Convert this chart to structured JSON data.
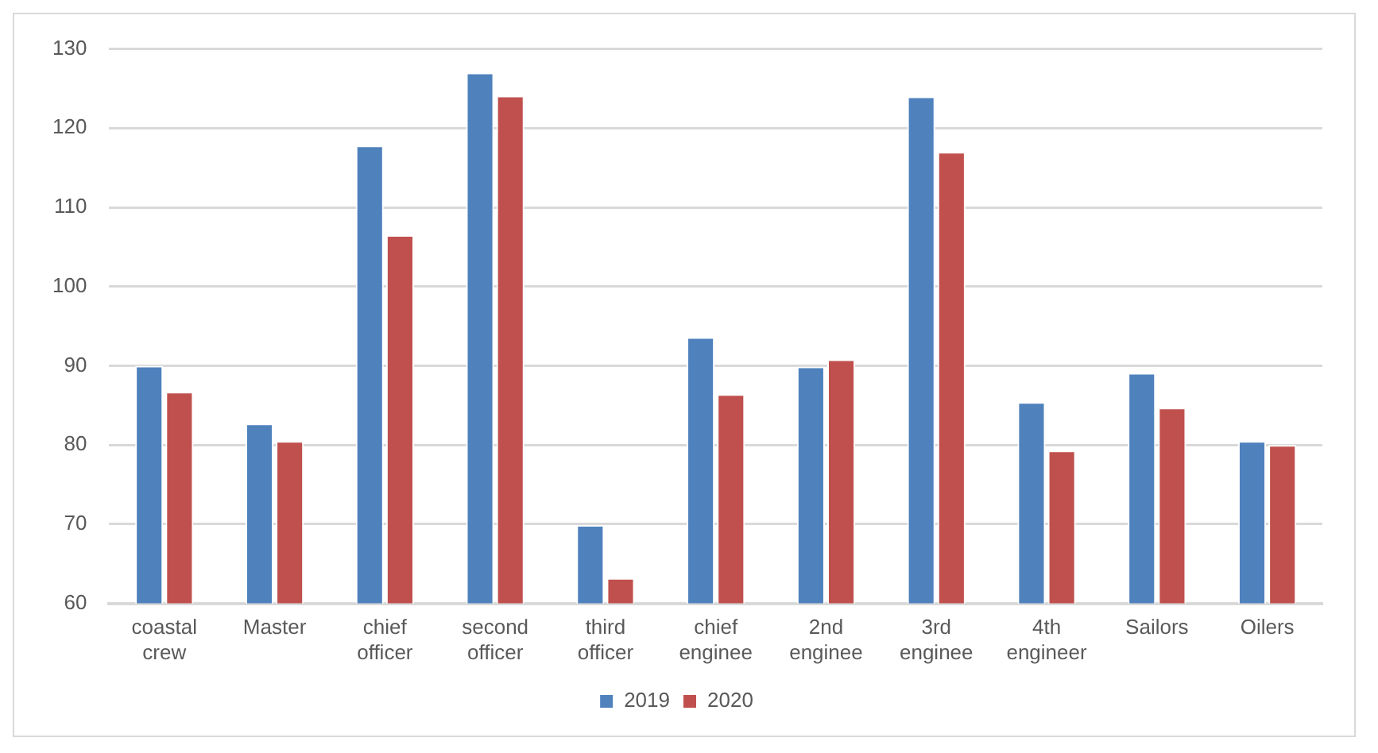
{
  "chart_data": {
    "type": "bar",
    "categories": [
      "coastal crew",
      "Master",
      "chief officer",
      "second officer",
      "third officer",
      "chief enginee",
      "2nd enginee",
      "3rd enginee",
      "4th engineer",
      "Sailors",
      "Oilers"
    ],
    "series": [
      {
        "name": "2019",
        "color": "#4f81bd",
        "values": [
          90.0,
          82.7,
          117.8,
          127.0,
          69.9,
          93.6,
          89.9,
          124.0,
          85.4,
          89.1,
          80.5
        ]
      },
      {
        "name": "2020",
        "color": "#c0504d",
        "values": [
          86.7,
          80.5,
          106.5,
          124.1,
          63.2,
          86.4,
          90.8,
          117.0,
          79.3,
          84.7,
          80.0
        ]
      }
    ],
    "ylim": [
      60,
      130
    ],
    "yticks": [
      60,
      70,
      80,
      90,
      100,
      110,
      120,
      130
    ],
    "grid": "y",
    "legend": "bottom"
  }
}
